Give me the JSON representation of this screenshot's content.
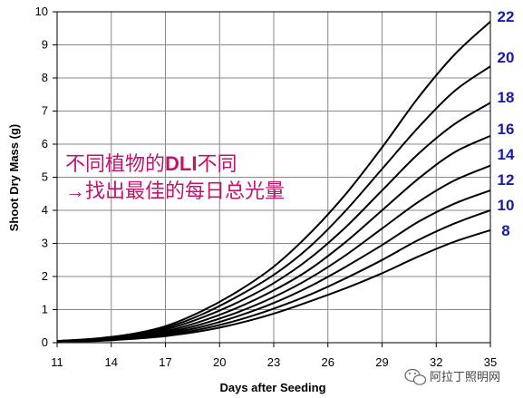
{
  "chart_data": {
    "type": "line",
    "xlabel": "Days after Seeding",
    "ylabel": "Shoot Dry Mass (g)",
    "xlim": [
      11,
      35
    ],
    "ylim": [
      0,
      10
    ],
    "x_ticks": [
      "11",
      "14",
      "17",
      "20",
      "23",
      "26",
      "29",
      "32",
      "35"
    ],
    "y_ticks": [
      "0",
      "1",
      "2",
      "3",
      "4",
      "5",
      "6",
      "7",
      "8",
      "9",
      "10"
    ],
    "grid": true,
    "line_color": "#000000",
    "label_color": "#1a1aa8",
    "series": [
      {
        "name": "22",
        "x": [
          11,
          13,
          15,
          17,
          19,
          21,
          23,
          25,
          27,
          29,
          31,
          33,
          35
        ],
        "y": [
          0.05,
          0.12,
          0.25,
          0.5,
          0.95,
          1.55,
          2.3,
          3.3,
          4.5,
          5.9,
          7.4,
          8.7,
          9.7
        ]
      },
      {
        "name": "20",
        "x": [
          11,
          13,
          15,
          17,
          19,
          21,
          23,
          25,
          27,
          29,
          31,
          33,
          35
        ],
        "y": [
          0.05,
          0.11,
          0.23,
          0.45,
          0.85,
          1.4,
          2.05,
          2.9,
          4.0,
          5.25,
          6.5,
          7.6,
          8.35
        ]
      },
      {
        "name": "18",
        "x": [
          11,
          13,
          15,
          17,
          19,
          21,
          23,
          25,
          27,
          29,
          31,
          33,
          35
        ],
        "y": [
          0.05,
          0.1,
          0.21,
          0.4,
          0.75,
          1.22,
          1.8,
          2.55,
          3.5,
          4.6,
          5.7,
          6.6,
          7.25
        ]
      },
      {
        "name": "16",
        "x": [
          11,
          13,
          15,
          17,
          19,
          21,
          23,
          25,
          27,
          29,
          31,
          33,
          35
        ],
        "y": [
          0.05,
          0.09,
          0.19,
          0.35,
          0.65,
          1.06,
          1.58,
          2.22,
          3.05,
          4.0,
          4.95,
          5.75,
          6.25
        ]
      },
      {
        "name": "14",
        "x": [
          11,
          13,
          15,
          17,
          19,
          21,
          23,
          25,
          27,
          29,
          31,
          33,
          35
        ],
        "y": [
          0.05,
          0.08,
          0.17,
          0.31,
          0.56,
          0.92,
          1.38,
          1.95,
          2.65,
          3.45,
          4.25,
          4.9,
          5.35
        ]
      },
      {
        "name": "12",
        "x": [
          11,
          13,
          15,
          17,
          19,
          21,
          23,
          25,
          27,
          29,
          31,
          33,
          35
        ],
        "y": [
          0.05,
          0.07,
          0.15,
          0.27,
          0.48,
          0.8,
          1.2,
          1.7,
          2.3,
          2.95,
          3.65,
          4.2,
          4.6
        ]
      },
      {
        "name": "10",
        "x": [
          11,
          13,
          15,
          17,
          19,
          21,
          23,
          25,
          27,
          29,
          31,
          33,
          35
        ],
        "y": [
          0.05,
          0.06,
          0.13,
          0.23,
          0.41,
          0.68,
          1.03,
          1.45,
          1.95,
          2.5,
          3.1,
          3.6,
          4.0
        ]
      },
      {
        "name": "8",
        "x": [
          11,
          13,
          15,
          17,
          19,
          21,
          23,
          25,
          27,
          29,
          31,
          33,
          35
        ],
        "y": [
          0.05,
          0.05,
          0.11,
          0.2,
          0.35,
          0.58,
          0.88,
          1.25,
          1.65,
          2.1,
          2.6,
          3.05,
          3.4
        ]
      }
    ],
    "annotation": {
      "line1_prefix": "不同植物的",
      "line1_bold": "DLI",
      "line1_suffix": "不同",
      "line2": "→找出最佳的每日总光量",
      "color": "#c0146e"
    }
  },
  "watermark": {
    "icon": "wechat-icon",
    "text": "阿拉丁照明网"
  }
}
